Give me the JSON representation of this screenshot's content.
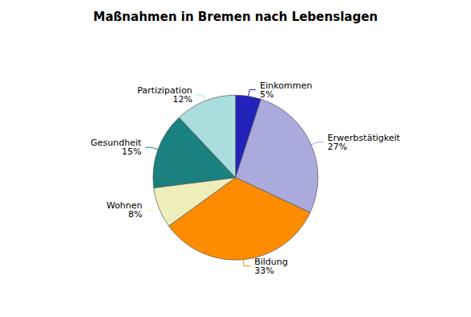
{
  "chart_data": {
    "type": "pie",
    "title": "Maßnahmen in Bremen nach Lebenslagen",
    "categories": [
      "Einkommen",
      "Erwerbstätigkeit",
      "Bildung",
      "Wohnen",
      "Gesundheit",
      "Partizipation"
    ],
    "values": [
      5,
      27,
      33,
      8,
      15,
      12
    ],
    "value_labels": [
      "5%",
      "27%",
      "33%",
      "8%",
      "15%",
      "12%"
    ],
    "colors": [
      "#2222bb",
      "#aaaadd",
      "#ff8c00",
      "#eeeebb",
      "#1a8080",
      "#aadddd"
    ],
    "data_labels": true
  }
}
